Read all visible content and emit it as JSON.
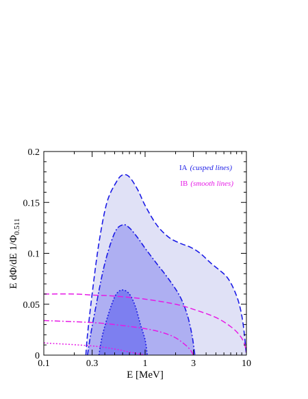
{
  "chart_data": {
    "type": "area",
    "xscale": "log",
    "xlim": [
      0.1,
      10
    ],
    "ylim": [
      0,
      0.2
    ],
    "xlabel": "E  [MeV]",
    "ylabel": "E dΦ/dE  1/Φ",
    "ylabel_sub": "0.511",
    "xticks": [
      {
        "value": 0.1,
        "label": "0.1"
      },
      {
        "value": 0.3,
        "label": "0.3"
      },
      {
        "value": 1,
        "label": "1"
      },
      {
        "value": 3,
        "label": "3"
      },
      {
        "value": 10,
        "label": "10"
      }
    ],
    "yticks": [
      {
        "value": 0,
        "label": "0"
      },
      {
        "value": 0.05,
        "label": "0.05"
      },
      {
        "value": 0.1,
        "label": "0.1"
      },
      {
        "value": 0.15,
        "label": "0.15"
      },
      {
        "value": 0.2,
        "label": "0.2"
      }
    ],
    "legend": {
      "placement": "top-right",
      "entries": [
        {
          "main": "IA",
          "sub": "(cusped lines)",
          "color": "#1a1ae6"
        },
        {
          "main": "IB",
          "sub": "(smooth lines)",
          "color": "#e619e6"
        }
      ]
    },
    "colors": {
      "ia_line": "#1a1ae6",
      "ib_line": "#e619e6",
      "fill_outer": "#e0e1f6",
      "fill_middle": "#aeaff2",
      "fill_inner": "#7d7ff0"
    },
    "ia_series": [
      {
        "style": "dashed",
        "fill": "fill_outer",
        "points": [
          [
            0.26,
            0
          ],
          [
            0.27,
            0.02
          ],
          [
            0.3,
            0.06
          ],
          [
            0.35,
            0.11
          ],
          [
            0.42,
            0.15
          ],
          [
            0.52,
            0.17
          ],
          [
            0.6,
            0.177
          ],
          [
            0.7,
            0.175
          ],
          [
            0.85,
            0.162
          ],
          [
            1.0,
            0.147
          ],
          [
            1.3,
            0.128
          ],
          [
            1.7,
            0.116
          ],
          [
            2.2,
            0.11
          ],
          [
            2.8,
            0.106
          ],
          [
            3.5,
            0.1
          ],
          [
            4.5,
            0.09
          ],
          [
            5.5,
            0.083
          ],
          [
            6.5,
            0.076
          ],
          [
            7.5,
            0.065
          ],
          [
            8.5,
            0.05
          ],
          [
            9.3,
            0.03
          ],
          [
            10,
            0
          ]
        ]
      },
      {
        "style": "dash-dot",
        "fill": "fill_middle",
        "points": [
          [
            0.27,
            0
          ],
          [
            0.29,
            0.02
          ],
          [
            0.33,
            0.05
          ],
          [
            0.4,
            0.09
          ],
          [
            0.5,
            0.12
          ],
          [
            0.6,
            0.128
          ],
          [
            0.7,
            0.125
          ],
          [
            0.85,
            0.115
          ],
          [
            1.0,
            0.105
          ],
          [
            1.3,
            0.09
          ],
          [
            1.7,
            0.075
          ],
          [
            2.2,
            0.058
          ],
          [
            2.6,
            0.04
          ],
          [
            2.9,
            0.02
          ],
          [
            3.1,
            0
          ]
        ]
      },
      {
        "style": "dotted",
        "fill": "fill_inner",
        "points": [
          [
            0.35,
            0
          ],
          [
            0.38,
            0.02
          ],
          [
            0.45,
            0.045
          ],
          [
            0.52,
            0.06
          ],
          [
            0.6,
            0.064
          ],
          [
            0.7,
            0.06
          ],
          [
            0.8,
            0.048
          ],
          [
            0.9,
            0.03
          ],
          [
            1.0,
            0.015
          ],
          [
            1.05,
            0
          ]
        ]
      }
    ],
    "ib_series": [
      {
        "style": "dashed",
        "points": [
          [
            0.1,
            0.06
          ],
          [
            0.2,
            0.06
          ],
          [
            0.3,
            0.059
          ],
          [
            0.5,
            0.058
          ],
          [
            1,
            0.055
          ],
          [
            2,
            0.05
          ],
          [
            3,
            0.045
          ],
          [
            5,
            0.037
          ],
          [
            7,
            0.028
          ],
          [
            8.5,
            0.02
          ],
          [
            9.5,
            0.012
          ],
          [
            10,
            0.003
          ]
        ]
      },
      {
        "style": "dash-dot",
        "points": [
          [
            0.1,
            0.034
          ],
          [
            0.3,
            0.032
          ],
          [
            0.5,
            0.03
          ],
          [
            1,
            0.026
          ],
          [
            1.5,
            0.022
          ],
          [
            2,
            0.017
          ],
          [
            2.5,
            0.01
          ],
          [
            2.8,
            0.005
          ],
          [
            3.0,
            0
          ]
        ]
      },
      {
        "style": "dotted",
        "points": [
          [
            0.1,
            0.012
          ],
          [
            0.3,
            0.009
          ],
          [
            0.5,
            0.006
          ],
          [
            0.7,
            0.003
          ],
          [
            0.9,
            0.001
          ],
          [
            1,
            0
          ]
        ]
      }
    ]
  }
}
